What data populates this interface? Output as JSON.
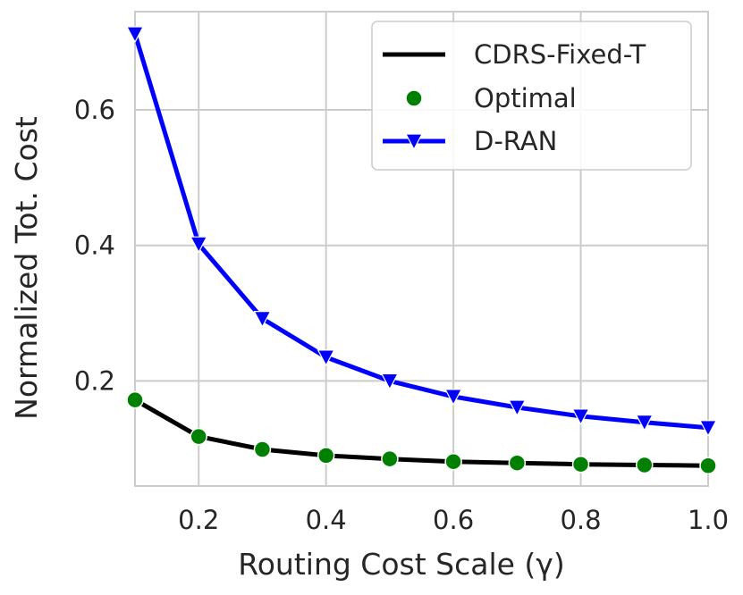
{
  "chart_data": {
    "type": "line",
    "title": "",
    "xlabel": "Routing Cost Scale (γ)",
    "ylabel": "Normalized Tot. Cost",
    "xlim": [
      0.1,
      1.0
    ],
    "ylim": [
      0.045,
      0.745
    ],
    "xticks": [
      0.2,
      0.4,
      0.6,
      0.8,
      1.0
    ],
    "xtick_labels": [
      "0.2",
      "0.4",
      "0.6",
      "0.8",
      "1.0"
    ],
    "yticks": [
      0.2,
      0.4,
      0.6
    ],
    "ytick_labels": [
      "0.2",
      "0.4",
      "0.6"
    ],
    "grid": true,
    "legend_position": "top-right",
    "x": [
      0.1,
      0.2,
      0.3,
      0.4,
      0.5,
      0.6,
      0.7,
      0.8,
      0.9,
      1.0
    ],
    "series": [
      {
        "name": "CDRS-Fixed-T",
        "style": "line",
        "color": "#000000",
        "values": [
          0.172,
          0.118,
          0.099,
          0.09,
          0.085,
          0.081,
          0.079,
          0.077,
          0.076,
          0.075
        ]
      },
      {
        "name": "Optimal",
        "style": "markers",
        "marker": "circle",
        "color": "#008000",
        "values": [
          0.172,
          0.118,
          0.099,
          0.09,
          0.085,
          0.081,
          0.079,
          0.077,
          0.076,
          0.075
        ]
      },
      {
        "name": "D-RAN",
        "style": "line+markers",
        "marker": "triangle-down",
        "color": "#0000ff",
        "values": [
          0.712,
          0.402,
          0.292,
          0.235,
          0.2,
          0.177,
          0.161,
          0.148,
          0.139,
          0.131
        ]
      }
    ]
  }
}
